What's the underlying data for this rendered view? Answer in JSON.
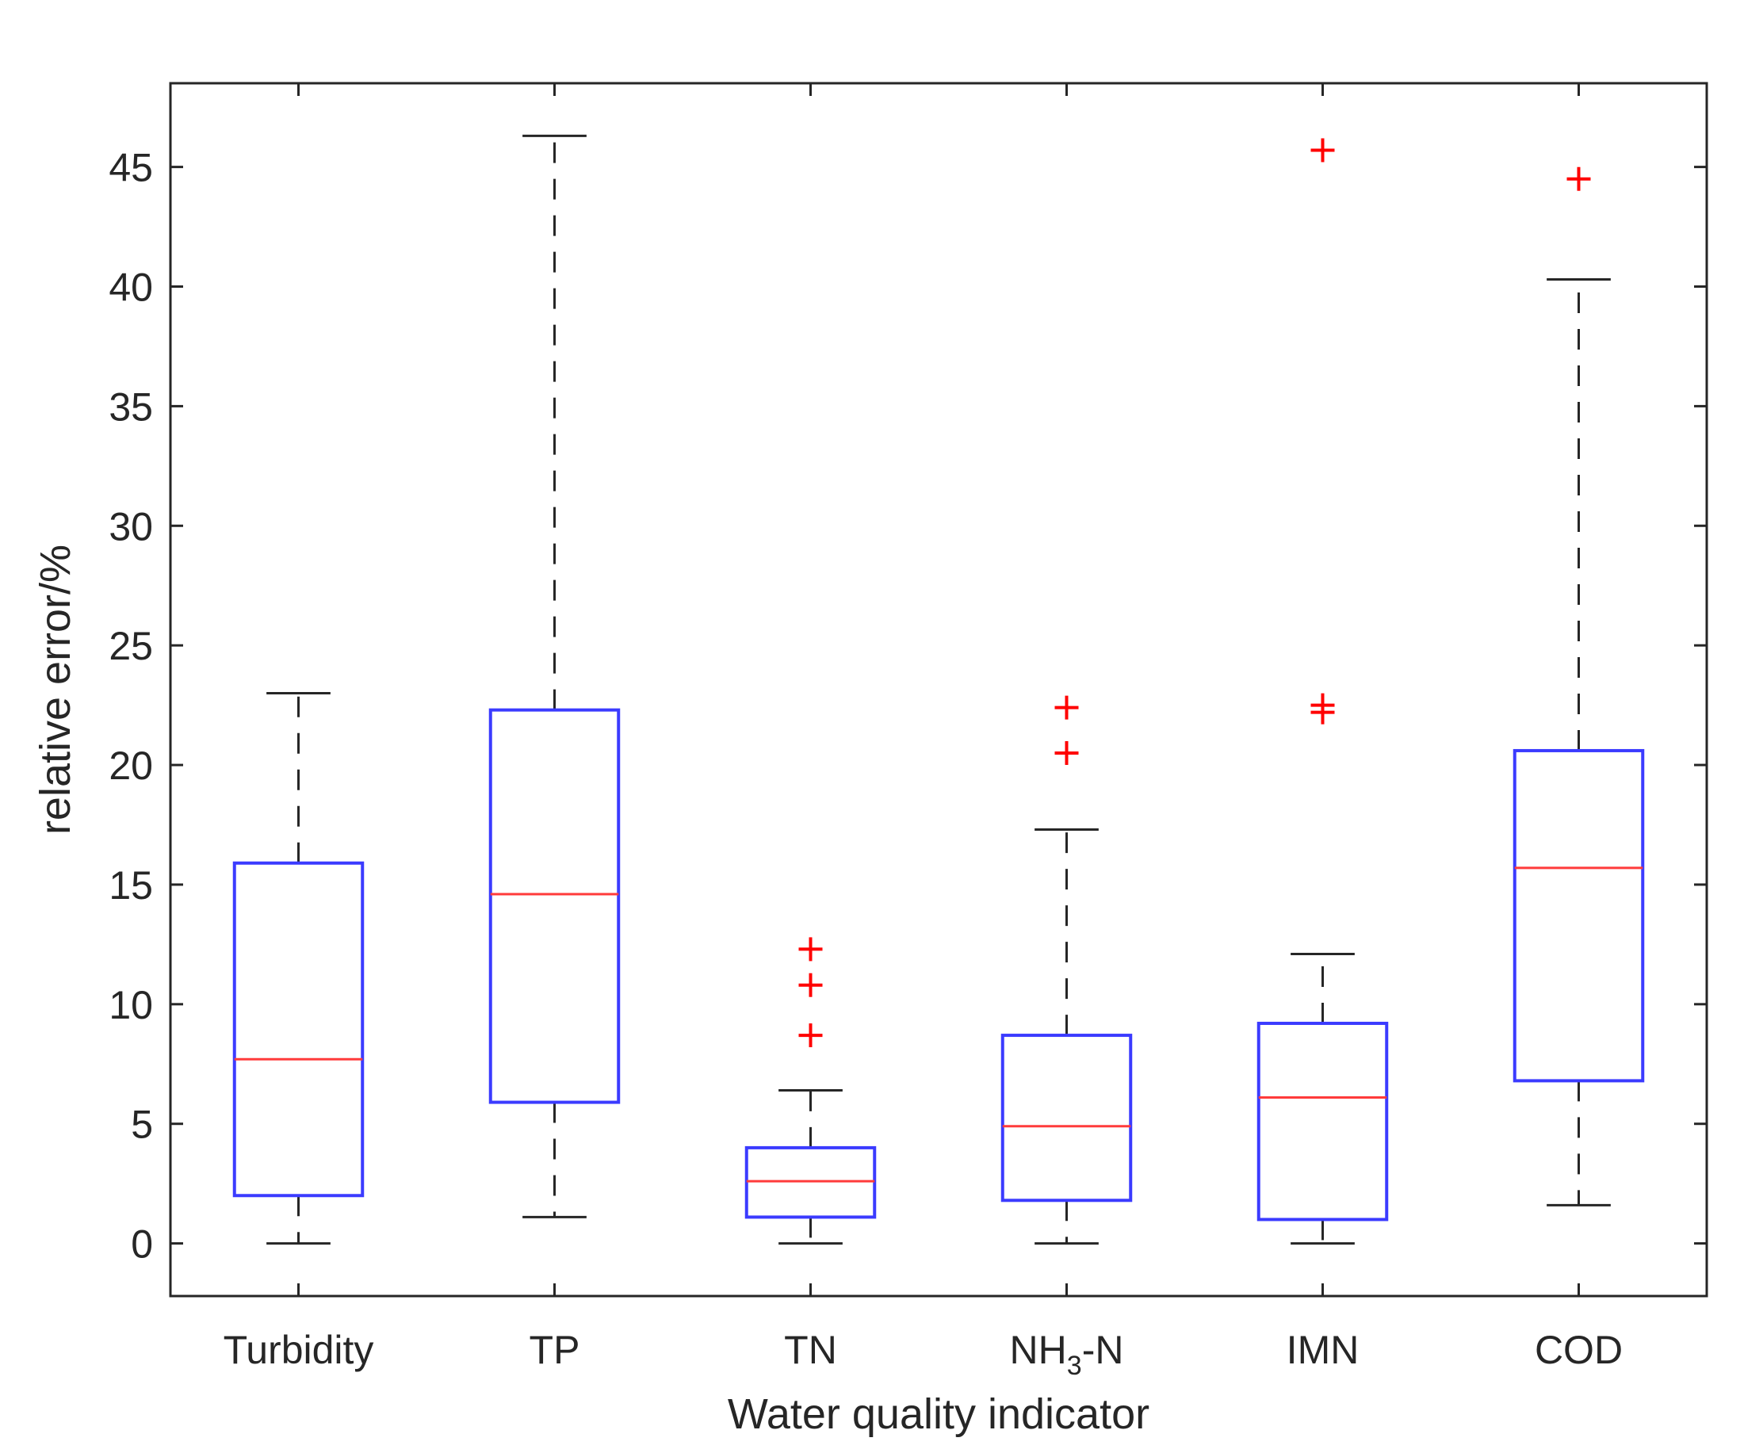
{
  "chart_data": {
    "type": "box",
    "title": "",
    "xlabel": "Water quality indicator",
    "ylabel": "relative error/%",
    "ylim": [
      -2.2,
      48.5
    ],
    "yticks": [
      0,
      5,
      10,
      15,
      20,
      25,
      30,
      35,
      40,
      45
    ],
    "grid": false,
    "colors": {
      "box": "#3b3bff",
      "median": "#ff3b3b",
      "whisker": "#262626",
      "outlier": "#ff0000",
      "axis": "#262626"
    },
    "categories": [
      {
        "label": "Turbidity",
        "sub": "",
        "suffix": "",
        "whisker_low": 0,
        "q1": 2.0,
        "median": 7.7,
        "q3": 15.9,
        "whisker_high": 23.0,
        "outliers": []
      },
      {
        "label": "TP",
        "sub": "",
        "suffix": "",
        "whisker_low": 1.1,
        "q1": 5.9,
        "median": 14.6,
        "q3": 22.3,
        "whisker_high": 46.3,
        "outliers": []
      },
      {
        "label": "TN",
        "sub": "",
        "suffix": "",
        "whisker_low": 0,
        "q1": 1.1,
        "median": 2.6,
        "q3": 4.0,
        "whisker_high": 6.4,
        "outliers": [
          8.7,
          10.8,
          12.3
        ]
      },
      {
        "label": "NH",
        "sub": "3",
        "suffix": "-N",
        "whisker_low": 0,
        "q1": 1.8,
        "median": 4.9,
        "q3": 8.7,
        "whisker_high": 17.3,
        "outliers": [
          20.5,
          22.4
        ]
      },
      {
        "label": "IMN",
        "sub": "",
        "suffix": "",
        "whisker_low": 0,
        "q1": 1.0,
        "median": 6.1,
        "q3": 9.2,
        "whisker_high": 12.1,
        "outliers": [
          22.2,
          22.5,
          45.7
        ]
      },
      {
        "label": "COD",
        "sub": "",
        "suffix": "",
        "whisker_low": 1.6,
        "q1": 6.8,
        "median": 15.7,
        "q3": 20.6,
        "whisker_high": 40.3,
        "outliers": [
          44.5
        ]
      }
    ]
  }
}
